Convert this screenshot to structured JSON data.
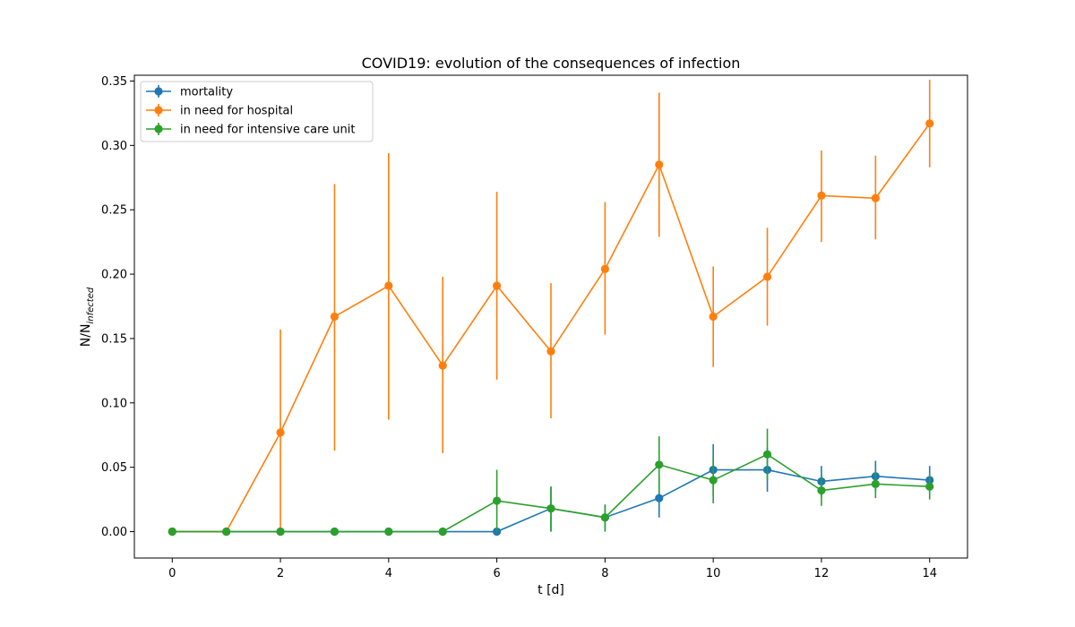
{
  "chart_data": {
    "type": "line",
    "title": "COVID19: evolution of the consequences of infection",
    "xlabel": "t [d]",
    "ylabel_main": "N/N",
    "ylabel_sub": "infected",
    "xlim": [
      -0.7,
      14.7
    ],
    "ylim": [
      -0.0205,
      0.3545
    ],
    "xticks": [
      0,
      2,
      4,
      6,
      8,
      10,
      12,
      14
    ],
    "xtick_labels": [
      "0",
      "2",
      "4",
      "6",
      "8",
      "10",
      "12",
      "14"
    ],
    "yticks": [
      0.0,
      0.05,
      0.1,
      0.15,
      0.2,
      0.25,
      0.3,
      0.35
    ],
    "ytick_labels": [
      "0.00",
      "0.05",
      "0.10",
      "0.15",
      "0.20",
      "0.25",
      "0.30",
      "0.35"
    ],
    "legend_placement": "upper-left",
    "x": [
      0,
      1,
      2,
      3,
      4,
      5,
      6,
      7,
      8,
      9,
      10,
      11,
      12,
      13,
      14
    ],
    "series": [
      {
        "name": "mortality",
        "color": "#1f77b4",
        "values": [
          0,
          0,
          0,
          0,
          0,
          0,
          0,
          0.018,
          0.011,
          0.026,
          0.048,
          0.048,
          0.039,
          0.043,
          0.04
        ],
        "err_low": [
          0,
          0,
          0,
          0,
          0,
          0,
          0,
          0.0,
          0.0,
          0.011,
          0.028,
          0.031,
          0.027,
          0.031,
          0.03
        ],
        "err_high": [
          0,
          0,
          0,
          0,
          0,
          0,
          0,
          0.035,
          0.021,
          0.043,
          0.068,
          0.065,
          0.051,
          0.055,
          0.051
        ]
      },
      {
        "name": "in need for hospital",
        "color": "#ff7f0e",
        "values": [
          0,
          0,
          0.077,
          0.167,
          0.191,
          0.129,
          0.191,
          0.14,
          0.204,
          0.285,
          0.167,
          0.198,
          0.261,
          0.259,
          0.317
        ],
        "err_low": [
          0,
          0,
          0.0,
          0.063,
          0.087,
          0.061,
          0.118,
          0.088,
          0.153,
          0.229,
          0.128,
          0.16,
          0.225,
          0.227,
          0.283
        ],
        "err_high": [
          0,
          0,
          0.157,
          0.27,
          0.294,
          0.198,
          0.264,
          0.193,
          0.256,
          0.341,
          0.206,
          0.236,
          0.296,
          0.292,
          0.351
        ]
      },
      {
        "name": "in need for intensive care unit",
        "color": "#2ca02c",
        "values": [
          0,
          0,
          0,
          0,
          0,
          0,
          0.024,
          0.018,
          0.011,
          0.052,
          0.04,
          0.06,
          0.032,
          0.037,
          0.035
        ],
        "err_low": [
          0,
          0,
          0,
          0,
          0,
          0,
          0.0,
          0.0,
          0.0,
          0.03,
          0.022,
          0.04,
          0.02,
          0.026,
          0.025
        ],
        "err_high": [
          0,
          0,
          0,
          0,
          0,
          0,
          0.048,
          0.035,
          0.021,
          0.074,
          0.058,
          0.08,
          0.044,
          0.048,
          0.045
        ]
      }
    ]
  }
}
